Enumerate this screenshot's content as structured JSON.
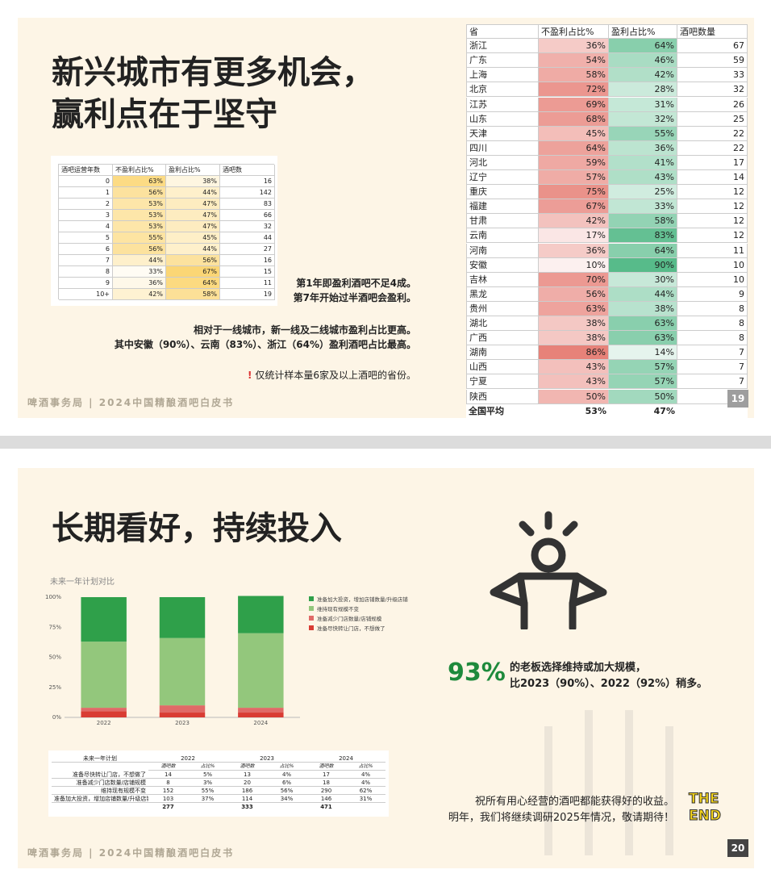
{
  "slide1": {
    "title_lines": [
      "新兴城市有更多机会，",
      "赢利点在于坚守"
    ],
    "years_table": {
      "header": [
        "酒吧运营年数",
        "不盈利占比%",
        "盈利占比%",
        "酒吧数"
      ],
      "rows": [
        [
          "0",
          "63%",
          "38%",
          "16"
        ],
        [
          "1",
          "56%",
          "44%",
          "142"
        ],
        [
          "2",
          "53%",
          "47%",
          "83"
        ],
        [
          "3",
          "53%",
          "47%",
          "66"
        ],
        [
          "4",
          "53%",
          "47%",
          "32"
        ],
        [
          "5",
          "55%",
          "45%",
          "44"
        ],
        [
          "6",
          "56%",
          "44%",
          "27"
        ],
        [
          "7",
          "44%",
          "56%",
          "16"
        ],
        [
          "8",
          "33%",
          "67%",
          "15"
        ],
        [
          "9",
          "36%",
          "64%",
          "11"
        ],
        [
          "10+",
          "42%",
          "58%",
          "19"
        ]
      ]
    },
    "notes": [
      "第1年即盈利酒吧不足4成。",
      "第7年开始过半酒吧会盈利。",
      "相对于一线城市，新一线及二线城市盈利占比更高。",
      "其中安徽（90%）、云南（83%）、浙江（64%）盈利酒吧占比最高。"
    ],
    "caveat_mark": "!",
    "caveat": "仅统计样本量6家及以上酒吧的省份。",
    "footer": "啤酒事务局 | 2024中国精酿酒吧白皮书",
    "page": "19",
    "province_table": {
      "header": [
        "省",
        "不盈利占比%",
        "盈利占比%",
        "酒吧数量"
      ],
      "rows": [
        [
          "浙江",
          "36%",
          "64%",
          "67"
        ],
        [
          "广东",
          "54%",
          "46%",
          "59"
        ],
        [
          "上海",
          "58%",
          "42%",
          "33"
        ],
        [
          "北京",
          "72%",
          "28%",
          "32"
        ],
        [
          "江苏",
          "69%",
          "31%",
          "26"
        ],
        [
          "山东",
          "68%",
          "32%",
          "25"
        ],
        [
          "天津",
          "45%",
          "55%",
          "22"
        ],
        [
          "四川",
          "64%",
          "36%",
          "22"
        ],
        [
          "河北",
          "59%",
          "41%",
          "17"
        ],
        [
          "辽宁",
          "57%",
          "43%",
          "14"
        ],
        [
          "重庆",
          "75%",
          "25%",
          "12"
        ],
        [
          "福建",
          "67%",
          "33%",
          "12"
        ],
        [
          "甘肃",
          "42%",
          "58%",
          "12"
        ],
        [
          "云南",
          "17%",
          "83%",
          "12"
        ],
        [
          "河南",
          "36%",
          "64%",
          "11"
        ],
        [
          "安徽",
          "10%",
          "90%",
          "10"
        ],
        [
          "吉林",
          "70%",
          "30%",
          "10"
        ],
        [
          "黑龙",
          "56%",
          "44%",
          "9"
        ],
        [
          "贵州",
          "63%",
          "38%",
          "8"
        ],
        [
          "湖北",
          "38%",
          "63%",
          "8"
        ],
        [
          "广西",
          "38%",
          "63%",
          "8"
        ],
        [
          "湖南",
          "86%",
          "14%",
          "7"
        ],
        [
          "山西",
          "43%",
          "57%",
          "7"
        ],
        [
          "宁夏",
          "43%",
          "57%",
          "7"
        ],
        [
          "陕西",
          "50%",
          "50%",
          null
        ]
      ],
      "total": [
        "全国平均",
        "53%",
        "47%"
      ]
    }
  },
  "chart_data": {
    "type": "bar",
    "stacked": true,
    "title": "未来一年计划对比",
    "categories": [
      "2022",
      "2023",
      "2024"
    ],
    "series": [
      {
        "name": "准备尽快转让门店，不想做了",
        "color": "#d93c33",
        "values": [
          5,
          4,
          4
        ]
      },
      {
        "name": "准备减少门店数量/店铺规模",
        "color": "#e06a67",
        "values": [
          3,
          6,
          4
        ]
      },
      {
        "name": "维持现有规模不变",
        "color": "#93c77c",
        "values": [
          55,
          56,
          62
        ]
      },
      {
        "name": "准备加大投资，增加店铺数量/升级店铺",
        "color": "#2fa04a",
        "values": [
          37,
          34,
          31
        ]
      }
    ],
    "ylim": [
      0,
      100
    ],
    "yticks": [
      {
        "value": 0,
        "label": "0%"
      },
      {
        "value": 25,
        "label": "25%"
      },
      {
        "value": 50,
        "label": "50%"
      },
      {
        "value": 75,
        "label": "75%"
      },
      {
        "value": 100,
        "label": "100%"
      }
    ],
    "grid": false
  },
  "slide2": {
    "title": "长期看好，持续投入",
    "plan_table": {
      "header": [
        "未来一年计划",
        "2022",
        "2023",
        "2024"
      ],
      "subheader": [
        "酒吧数",
        "占比%",
        "酒吧数",
        "占比%",
        "酒吧数",
        "占比%"
      ],
      "rows": [
        [
          "准备尽快转让门店，不想做了",
          "14",
          "5%",
          "13",
          "4%",
          "17",
          "4%"
        ],
        [
          "准备减少门店数量/店铺规模",
          "8",
          "3%",
          "20",
          "6%",
          "18",
          "4%"
        ],
        [
          "维持现有规模不变",
          "152",
          "55%",
          "186",
          "56%",
          "290",
          "62%"
        ],
        [
          "准备加大投资，增加店铺数量/升级店铺",
          "103",
          "37%",
          "114",
          "34%",
          "146",
          "31%"
        ]
      ],
      "totals": [
        "277",
        "333",
        "471"
      ]
    },
    "big_number": "93%",
    "big_text": [
      "的老板选择维持或加大规模，",
      "比2023（90%）、2022（92%）稍多。"
    ],
    "closing": [
      "祝所有用心经营的酒吧都能获得好的收益。",
      "明年，我们将继续调研2025年情况，敬请期待！"
    ],
    "the_end": [
      "THE",
      "END"
    ],
    "footer": "啤酒事务局 | 2024中国精酿酒吧白皮书",
    "page": "20"
  }
}
